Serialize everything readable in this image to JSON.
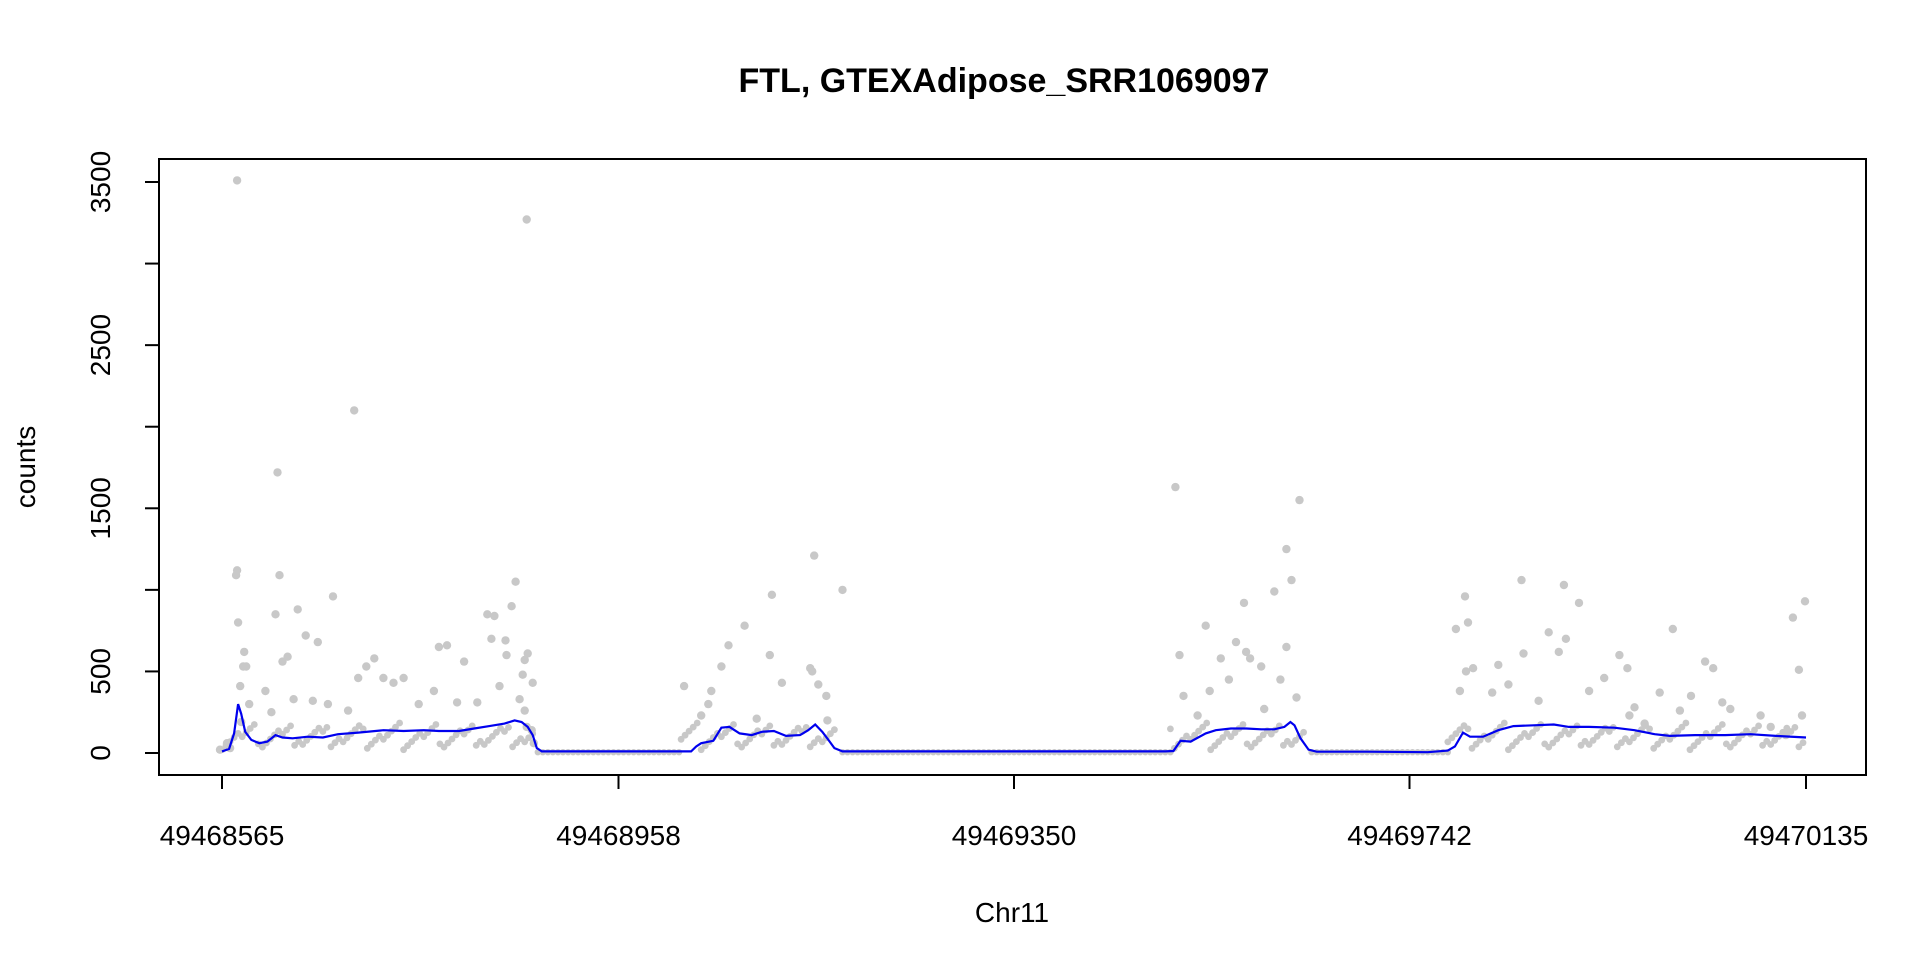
{
  "chart_data": {
    "type": "scatter",
    "title": "FTL, GTEXAdipose_SRR1069097",
    "xlabel": "Chr11",
    "ylabel": "counts",
    "xlim": [
      49468565,
      49470135
    ],
    "ylim": [
      0,
      3500
    ],
    "xticks": [
      49468565,
      49468958,
      49469350,
      49469742,
      49470135
    ],
    "xtick_labels": [
      "49468565",
      "49468958",
      "49469350",
      "49469742",
      "49470135"
    ],
    "yticks": [
      0,
      500,
      1000,
      1500,
      2000,
      2500,
      3000,
      3500
    ],
    "ytick_labels": [
      "0",
      "500",
      "",
      "1500",
      "",
      "2500",
      "",
      "3500"
    ],
    "grid": false,
    "point_color": "#c8c8c8",
    "line_color": "#0000ee",
    "series": [
      {
        "type": "scatter",
        "points": [
          [
            49468580,
            3510
          ],
          [
            49468580,
            1120
          ],
          [
            49468579,
            1090
          ],
          [
            49468581,
            800
          ],
          [
            49468583,
            410
          ],
          [
            49468584,
            190
          ],
          [
            49468586,
            530
          ],
          [
            49468587,
            620
          ],
          [
            49468589,
            530
          ],
          [
            49468620,
            1720
          ],
          [
            49468622,
            1090
          ],
          [
            49468618,
            850
          ],
          [
            49468625,
            560
          ],
          [
            49468630,
            590
          ],
          [
            49468640,
            880
          ],
          [
            49468648,
            720
          ],
          [
            49468660,
            680
          ],
          [
            49468675,
            960
          ],
          [
            49468696,
            2100
          ],
          [
            49468700,
            460
          ],
          [
            49468708,
            530
          ],
          [
            49468716,
            580
          ],
          [
            49468725,
            460
          ],
          [
            49468745,
            460
          ],
          [
            49468780,
            650
          ],
          [
            49468788,
            660
          ],
          [
            49468805,
            560
          ],
          [
            49468828,
            850
          ],
          [
            49468835,
            840
          ],
          [
            49468832,
            700
          ],
          [
            49468846,
            690
          ],
          [
            49468852,
            900
          ],
          [
            49468856,
            1050
          ],
          [
            49468847,
            600
          ],
          [
            49468868,
            610
          ],
          [
            49468873,
            430
          ],
          [
            49468865,
            570
          ],
          [
            49468863,
            480
          ],
          [
            49468563,
            20
          ],
          [
            49468570,
            60
          ],
          [
            49468573,
            30
          ],
          [
            49468592,
            300
          ],
          [
            49468608,
            380
          ],
          [
            49468614,
            250
          ],
          [
            49468636,
            330
          ],
          [
            49468655,
            320
          ],
          [
            49468670,
            300
          ],
          [
            49468690,
            260
          ],
          [
            49468735,
            430
          ],
          [
            49468760,
            300
          ],
          [
            49468775,
            380
          ],
          [
            49468798,
            310
          ],
          [
            49468818,
            310
          ],
          [
            49468840,
            410
          ],
          [
            49468860,
            330
          ],
          [
            49468865,
            260
          ],
          [
            49468867,
            160
          ],
          [
            49468872,
            140
          ],
          [
            49468874,
            60
          ],
          [
            49468867,
            3270
          ],
          [
            49469023,
            410
          ],
          [
            49469050,
            380
          ],
          [
            49469060,
            530
          ],
          [
            49469067,
            660
          ],
          [
            49469083,
            780
          ],
          [
            49469110,
            970
          ],
          [
            49469108,
            600
          ],
          [
            49469120,
            430
          ],
          [
            49469148,
            520
          ],
          [
            49469150,
            500
          ],
          [
            49469152,
            1210
          ],
          [
            49469156,
            420
          ],
          [
            49469164,
            350
          ],
          [
            49469180,
            1000
          ],
          [
            49469040,
            230
          ],
          [
            49469047,
            300
          ],
          [
            49469095,
            210
          ],
          [
            49469165,
            200
          ],
          [
            49469510,
            1630
          ],
          [
            49469514,
            600
          ],
          [
            49469540,
            780
          ],
          [
            49469544,
            380
          ],
          [
            49469555,
            580
          ],
          [
            49469570,
            680
          ],
          [
            49469578,
            920
          ],
          [
            49469580,
            620
          ],
          [
            49469584,
            580
          ],
          [
            49469595,
            530
          ],
          [
            49469608,
            990
          ],
          [
            49469614,
            450
          ],
          [
            49469620,
            650
          ],
          [
            49469620,
            1250
          ],
          [
            49469625,
            1060
          ],
          [
            49469633,
            1550
          ],
          [
            49469630,
            340
          ],
          [
            49469518,
            350
          ],
          [
            49469532,
            230
          ],
          [
            49469563,
            450
          ],
          [
            49469598,
            270
          ],
          [
            49469788,
            760
          ],
          [
            49469792,
            380
          ],
          [
            49469798,
            500
          ],
          [
            49469800,
            800
          ],
          [
            49469797,
            960
          ],
          [
            49469805,
            520
          ],
          [
            49469830,
            540
          ],
          [
            49469853,
            1060
          ],
          [
            49469855,
            610
          ],
          [
            49469880,
            740
          ],
          [
            49469890,
            620
          ],
          [
            49469895,
            1030
          ],
          [
            49469897,
            700
          ],
          [
            49469910,
            920
          ],
          [
            49469935,
            460
          ],
          [
            49469950,
            600
          ],
          [
            49469958,
            520
          ],
          [
            49469990,
            370
          ],
          [
            49470003,
            760
          ],
          [
            49470021,
            350
          ],
          [
            49470035,
            560
          ],
          [
            49470043,
            520
          ],
          [
            49470052,
            310
          ],
          [
            49470122,
            830
          ],
          [
            49470128,
            510
          ],
          [
            49470134,
            930
          ],
          [
            49470131,
            230
          ],
          [
            49469824,
            370
          ],
          [
            49469840,
            420
          ],
          [
            49469870,
            320
          ],
          [
            49469920,
            380
          ],
          [
            49469965,
            280
          ],
          [
            49470010,
            260
          ],
          [
            49470060,
            270
          ],
          [
            49470090,
            230
          ],
          [
            49470100,
            160
          ],
          [
            49470115,
            110
          ],
          [
            49469960,
            230
          ],
          [
            49469975,
            180
          ]
        ]
      },
      {
        "type": "line",
        "points": [
          [
            49468565,
            10
          ],
          [
            49468572,
            25
          ],
          [
            49468577,
            120
          ],
          [
            49468581,
            300
          ],
          [
            49468584,
            240
          ],
          [
            49468588,
            130
          ],
          [
            49468594,
            80
          ],
          [
            49468602,
            60
          ],
          [
            49468610,
            70
          ],
          [
            49468618,
            110
          ],
          [
            49468625,
            95
          ],
          [
            49468635,
            90
          ],
          [
            49468650,
            100
          ],
          [
            49468665,
            95
          ],
          [
            49468680,
            115
          ],
          [
            49468700,
            125
          ],
          [
            49468725,
            140
          ],
          [
            49468745,
            135
          ],
          [
            49468765,
            140
          ],
          [
            49468780,
            135
          ],
          [
            49468800,
            135
          ],
          [
            49468815,
            150
          ],
          [
            49468830,
            165
          ],
          [
            49468845,
            180
          ],
          [
            49468855,
            200
          ],
          [
            49468862,
            190
          ],
          [
            49468868,
            160
          ],
          [
            49468873,
            110
          ],
          [
            49468877,
            30
          ],
          [
            49468882,
            10
          ],
          [
            49468950,
            10
          ],
          [
            49469000,
            10
          ],
          [
            49469030,
            10
          ],
          [
            49469035,
            40
          ],
          [
            49469040,
            60
          ],
          [
            49469052,
            75
          ],
          [
            49469060,
            155
          ],
          [
            49469068,
            160
          ],
          [
            49469078,
            120
          ],
          [
            49469090,
            110
          ],
          [
            49469100,
            130
          ],
          [
            49469112,
            135
          ],
          [
            49469124,
            105
          ],
          [
            49469138,
            110
          ],
          [
            49469146,
            140
          ],
          [
            49469153,
            175
          ],
          [
            49469160,
            130
          ],
          [
            49469166,
            80
          ],
          [
            49469172,
            30
          ],
          [
            49469180,
            10
          ],
          [
            49469300,
            10
          ],
          [
            49469400,
            10
          ],
          [
            49469500,
            10
          ],
          [
            49469508,
            12
          ],
          [
            49469515,
            75
          ],
          [
            49469525,
            70
          ],
          [
            49469540,
            120
          ],
          [
            49469550,
            140
          ],
          [
            49469565,
            150
          ],
          [
            49469580,
            150
          ],
          [
            49469595,
            145
          ],
          [
            49469608,
            145
          ],
          [
            49469618,
            160
          ],
          [
            49469624,
            190
          ],
          [
            49469628,
            170
          ],
          [
            49469634,
            90
          ],
          [
            49469642,
            20
          ],
          [
            49469650,
            8
          ],
          [
            49469700,
            8
          ],
          [
            49469760,
            5
          ],
          [
            49469780,
            15
          ],
          [
            49469787,
            40
          ],
          [
            49469795,
            125
          ],
          [
            49469802,
            100
          ],
          [
            49469815,
            100
          ],
          [
            49469830,
            140
          ],
          [
            49469845,
            165
          ],
          [
            49469865,
            170
          ],
          [
            49469885,
            175
          ],
          [
            49469900,
            160
          ],
          [
            49469920,
            160
          ],
          [
            49469945,
            155
          ],
          [
            49469965,
            140
          ],
          [
            49469985,
            115
          ],
          [
            49470000,
            105
          ],
          [
            49470025,
            110
          ],
          [
            49470055,
            110
          ],
          [
            49470080,
            115
          ],
          [
            49470105,
            105
          ],
          [
            49470135,
            95
          ]
        ]
      }
    ]
  }
}
